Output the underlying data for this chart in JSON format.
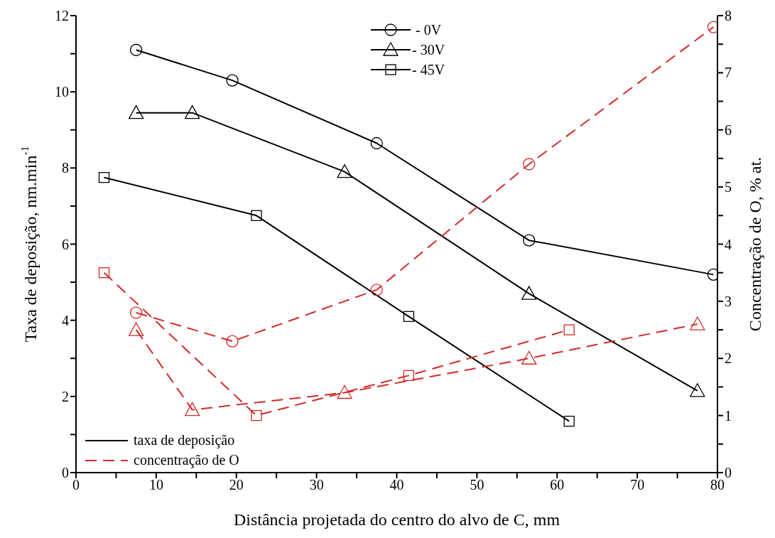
{
  "chart_data": {
    "type": "line",
    "xlabel": "Distância projetada do centro do alvo de C, mm",
    "ylabel": "Taxa de deposição, nm.min$^{-1}$",
    "y2label": "Concentração de O, % at.",
    "xlim": [
      0,
      80
    ],
    "xticks": [
      0,
      {
        "value": 5,
        "label": null
      },
      10,
      {
        "value": 15,
        "label": null
      },
      20,
      {
        "value": 25,
        "label": null
      },
      30,
      {
        "value": 35,
        "label": null
      },
      40,
      {
        "value": 45,
        "label": null
      },
      50,
      {
        "value": 55,
        "label": null
      },
      60,
      {
        "value": 65,
        "label": null
      },
      70,
      {
        "value": 75,
        "label": null
      },
      80
    ],
    "ylim": [
      0,
      12
    ],
    "yticks": [
      0,
      {
        "value": 1,
        "label": null
      },
      2,
      {
        "value": 3,
        "label": null
      },
      4,
      {
        "value": 5,
        "label": null
      },
      6,
      {
        "value": 7,
        "label": null
      },
      8,
      {
        "value": 9,
        "label": null
      },
      10,
      {
        "value": 11,
        "label": null
      },
      12
    ],
    "y2lim": [
      0,
      8
    ],
    "y2ticks": [
      0,
      {
        "value": 0.5,
        "label": null
      },
      1,
      {
        "value": 1.5,
        "label": null
      },
      2,
      {
        "value": 2.5,
        "label": null
      },
      3,
      {
        "value": 3.5,
        "label": null
      },
      4,
      {
        "value": 4.5,
        "label": null
      },
      5,
      {
        "value": 5.5,
        "label": null
      },
      6,
      {
        "value": 6.5,
        "label": null
      },
      7,
      {
        "value": 7.5,
        "label": null
      },
      8
    ],
    "grid": false,
    "legend": "top",
    "annotations": [
      "taxa de deposição",
      "concentração de O"
    ],
    "series": [
      {
        "name": " - 0V",
        "color": "#000000",
        "marker": "circle",
        "line_style": "solid",
        "x": [
          7.5,
          19.5,
          37.5,
          56.5,
          79.5
        ],
        "values": [
          11.1,
          10.3,
          8.65,
          6.1,
          5.2
        ]
      },
      {
        "name": "- 30V",
        "color": "#000000",
        "marker": "triangle",
        "line_style": "solid",
        "x": [
          7.5,
          14.5,
          33.5,
          56.5,
          77.5
        ],
        "values": [
          9.45,
          9.45,
          7.9,
          4.7,
          2.15
        ]
      },
      {
        "name": "- 45V",
        "color": "#000000",
        "marker": "square",
        "line_style": "solid",
        "x": [
          3.5,
          22.5,
          41.5,
          61.5
        ],
        "values": [
          7.75,
          6.75,
          4.1,
          1.35
        ]
      },
      {
        "color": "#d42a2a",
        "marker": "circle",
        "line_style": "dashed",
        "axis": "y2",
        "x": [
          7.5,
          19.5,
          37.5,
          56.5,
          79.5
        ],
        "values": [
          2.8,
          2.3,
          3.2,
          5.4,
          7.8
        ]
      },
      {
        "color": "#d42a2a",
        "marker": "triangle",
        "line_style": "dashed",
        "axis": "y2",
        "x": [
          7.5,
          14.5,
          33.5,
          56.5,
          77.5
        ],
        "values": [
          2.5,
          1.1,
          1.4,
          2.0,
          2.6
        ]
      },
      {
        "color": "#d42a2a",
        "marker": "square",
        "line_style": "dashed",
        "axis": "y2",
        "x": [
          3.5,
          22.5,
          41.5,
          61.5
        ],
        "values": [
          3.5,
          1.0,
          1.7,
          2.5
        ]
      }
    ]
  }
}
